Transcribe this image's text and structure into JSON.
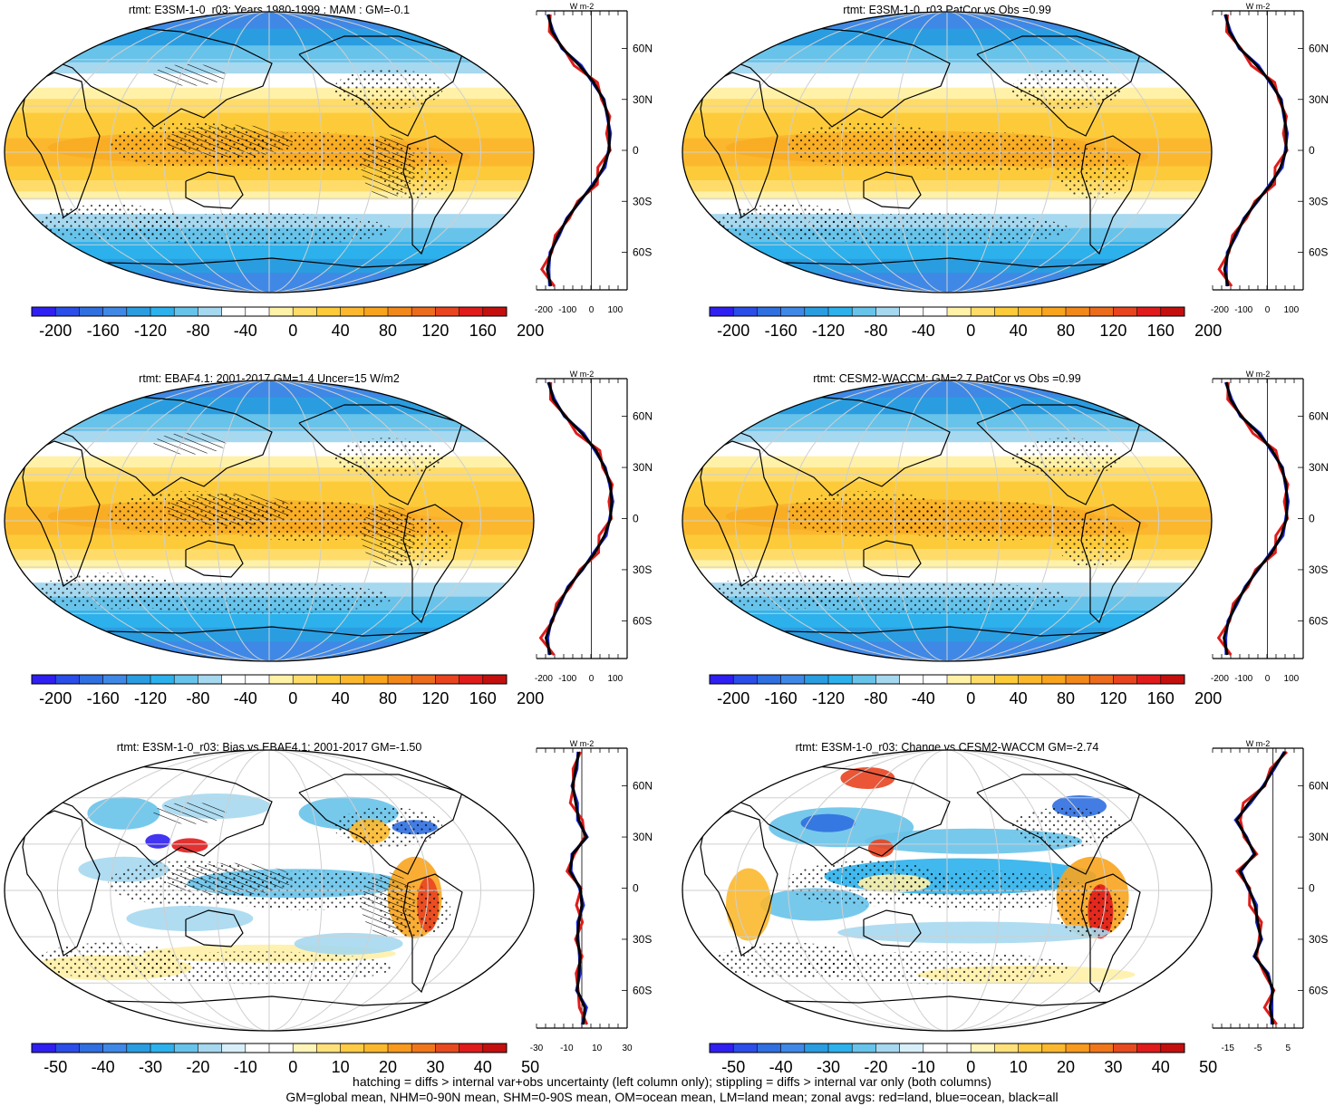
{
  "palettes": {
    "full": [
      "#2f1ff0",
      "#2b4de8",
      "#2f6fe0",
      "#3f88e6",
      "#2a9de0",
      "#2cb1ec",
      "#68c3ea",
      "#a6d8ef",
      "#ffffff",
      "#ffffff",
      "#fff1a8",
      "#ffdc6a",
      "#fdcb3a",
      "#fbb82e",
      "#f8a41e",
      "#f3881a",
      "#ec6c1e",
      "#e84420",
      "#e01b1b",
      "#c40f0f"
    ],
    "diff": [
      "#2f1ff0",
      "#2b4de8",
      "#2f6fe0",
      "#3f88e6",
      "#2a9de0",
      "#2cb1ec",
      "#68c3ea",
      "#a6d8ef",
      "#d8eef8",
      "#ffffff",
      "#ffffff",
      "#fff5b8",
      "#ffe07a",
      "#fdcb45",
      "#fbb82e",
      "#f89a1e",
      "#f0761c",
      "#e84a20",
      "#e01b1b",
      "#c40f0f"
    ]
  },
  "lat_ticks": [
    "60N",
    "30N",
    "0",
    "30S",
    "60S"
  ],
  "panels": [
    {
      "title": "rtmt: E3SM-1-0_r03: Years 1980-1999 : MAM : GM=-0.1",
      "kind": "full",
      "hatch": true,
      "stipple": true,
      "colorbar_labels": [
        "-200",
        "-160",
        "-120",
        "-80",
        "-40",
        "0",
        "40",
        "80",
        "120",
        "160",
        "200"
      ],
      "zonal_ticks": [
        "-200",
        "-100",
        "0",
        "100"
      ],
      "unit": "W m-2",
      "zonal_range": [
        -230,
        150
      ]
    },
    {
      "title": "rtmt: E3SM-1-0_r03 PatCor vs Obs =0.99",
      "kind": "full",
      "hatch": false,
      "stipple": true,
      "colorbar_labels": [
        "-200",
        "-160",
        "-120",
        "-80",
        "-40",
        "0",
        "40",
        "80",
        "120",
        "160",
        "200"
      ],
      "zonal_ticks": [
        "-200",
        "-100",
        "0",
        "100"
      ],
      "unit": "W m-2",
      "zonal_range": [
        -230,
        150
      ]
    },
    {
      "title": "rtmt: EBAF4.1: 2001-2017 GM=1.4 Uncer=15 W/m2",
      "kind": "full",
      "hatch": true,
      "stipple": true,
      "colorbar_labels": [
        "-200",
        "-160",
        "-120",
        "-80",
        "-40",
        "0",
        "40",
        "80",
        "120",
        "160",
        "200"
      ],
      "zonal_ticks": [
        "-200",
        "-100",
        "0",
        "100"
      ],
      "unit": "W m-2",
      "zonal_range": [
        -230,
        150
      ]
    },
    {
      "title": "rtmt: CESM2-WACCM: GM=2.7 PatCor vs Obs =0.99",
      "kind": "full",
      "hatch": false,
      "stipple": true,
      "colorbar_labels": [
        "-200",
        "-160",
        "-120",
        "-80",
        "-40",
        "0",
        "40",
        "80",
        "120",
        "160",
        "200"
      ],
      "zonal_ticks": [
        "-200",
        "-100",
        "0",
        "100"
      ],
      "unit": "W m-2",
      "zonal_range": [
        -230,
        150
      ]
    },
    {
      "title": "rtmt: E3SM-1-0_r03: Bias vs EBAF4.1: 2001-2017 GM=-1.50",
      "kind": "bias",
      "hatch": true,
      "stipple": true,
      "colorbar_labels": [
        "-50",
        "-40",
        "-30",
        "-20",
        "-10",
        "0",
        "10",
        "20",
        "30",
        "40",
        "50"
      ],
      "zonal_ticks": [
        "-30",
        "-10",
        "10",
        "30"
      ],
      "unit": "W m-2",
      "zonal_range": [
        -30,
        30
      ]
    },
    {
      "title": "rtmt: E3SM-1-0_r03: Change vs CESM2-WACCM GM=-2.74",
      "kind": "change",
      "hatch": false,
      "stipple": true,
      "colorbar_labels": [
        "-50",
        "-40",
        "-30",
        "-20",
        "-10",
        "0",
        "10",
        "20",
        "30",
        "40",
        "50"
      ],
      "zonal_ticks": [
        "-15",
        "-5",
        "5"
      ],
      "unit": "W m-2",
      "zonal_range": [
        -20,
        10
      ]
    }
  ],
  "footer": {
    "line1": "hatching = diffs > internal var+obs uncertainty (left column only); stippling = diffs > internal var only (both columns)",
    "line2": "GM=global mean, NHM=0-90N mean, SHM=0-90S mean, OM=ocean mean, LM=land mean; zonal avgs: red=land, blue=ocean, black=all"
  },
  "chart_data": [
    {
      "type": "heatmap",
      "title": "rtmt: E3SM-1-0_r03: Years 1980-1999 : MAM : GM=-0.1",
      "colorbar_range": [
        -200,
        200
      ],
      "zonal_mean": {
        "lat": [
          80,
          70,
          60,
          50,
          40,
          30,
          20,
          10,
          0,
          -10,
          -20,
          -30,
          -40,
          -50,
          -60,
          -70,
          -80
        ],
        "values": [
          -180,
          -165,
          -120,
          -50,
          10,
          50,
          70,
          75,
          75,
          50,
          10,
          -50,
          -100,
          -140,
          -170,
          -185,
          -170
        ]
      }
    },
    {
      "type": "heatmap",
      "title": "rtmt: E3SM-1-0_r03 PatCor vs Obs =0.99",
      "colorbar_range": [
        -200,
        200
      ],
      "zonal_mean": {
        "lat": [
          80,
          70,
          60,
          50,
          40,
          30,
          20,
          10,
          0,
          -10,
          -20,
          -30,
          -40,
          -50,
          -60,
          -70,
          -80
        ],
        "values": [
          -175,
          -160,
          -115,
          -45,
          15,
          55,
          72,
          78,
          78,
          55,
          15,
          -45,
          -95,
          -135,
          -165,
          -180,
          -165
        ]
      }
    },
    {
      "type": "heatmap",
      "title": "rtmt: EBAF4.1: 2001-2017 GM=1.4 Uncer=15 W/m2",
      "colorbar_range": [
        -200,
        200
      ],
      "zonal_mean": {
        "lat": [
          80,
          70,
          60,
          50,
          40,
          30,
          20,
          10,
          0,
          -10,
          -20,
          -30,
          -40,
          -50,
          -60,
          -70,
          -80
        ],
        "values": [
          -178,
          -160,
          -110,
          -40,
          20,
          55,
          80,
          85,
          80,
          55,
          15,
          -40,
          -95,
          -135,
          -165,
          -190,
          -172
        ]
      }
    },
    {
      "type": "heatmap",
      "title": "rtmt: CESM2-WACCM: GM=2.7 PatCor vs Obs =0.99",
      "colorbar_range": [
        -200,
        200
      ],
      "zonal_mean": {
        "lat": [
          80,
          70,
          60,
          50,
          40,
          30,
          20,
          10,
          0,
          -10,
          -20,
          -30,
          -40,
          -50,
          -60,
          -70,
          -80
        ],
        "values": [
          -172,
          -155,
          -110,
          -38,
          20,
          60,
          78,
          82,
          80,
          58,
          18,
          -42,
          -90,
          -132,
          -162,
          -182,
          -168
        ]
      }
    },
    {
      "type": "heatmap",
      "title": "rtmt: E3SM-1-0_r03: Bias vs EBAF4.1: 2001-2017 GM=-1.50",
      "colorbar_range": [
        -50,
        50
      ],
      "zonal_mean": {
        "lat": [
          80,
          70,
          60,
          50,
          40,
          30,
          20,
          10,
          0,
          -10,
          -20,
          -30,
          -40,
          -50,
          -60,
          -70,
          -80
        ],
        "values": [
          -2,
          -4,
          -6,
          -4,
          -2,
          3,
          -6,
          -8,
          -1,
          0,
          -2,
          -3,
          -1,
          -2,
          -3,
          2,
          1
        ]
      }
    },
    {
      "type": "heatmap",
      "title": "rtmt: E3SM-1-0_r03: Change vs CESM2-WACCM GM=-2.74",
      "colorbar_range": [
        -50,
        50
      ],
      "zonal_mean": {
        "lat": [
          80,
          70,
          60,
          50,
          40,
          30,
          20,
          10,
          0,
          -10,
          -20,
          -30,
          -40,
          -50,
          -60,
          -70,
          -80
        ],
        "values": [
          4,
          0,
          -3,
          -8,
          -12,
          -9,
          -6,
          -11,
          -8,
          -6,
          -5,
          -4,
          -6,
          -2,
          0,
          -1,
          0
        ]
      }
    }
  ]
}
